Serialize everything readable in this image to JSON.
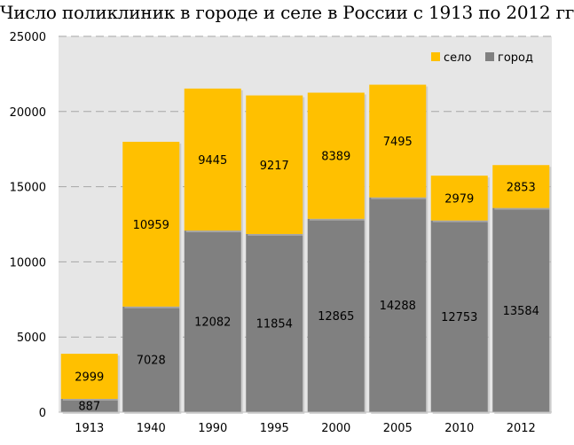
{
  "chart_data": {
    "type": "bar",
    "stacked": true,
    "title": "Число поликлиник в городе и селе в России с 1913 по 2012 гг",
    "xlabel": "",
    "ylabel": "",
    "categories": [
      "1913",
      "1940",
      "1990",
      "1995",
      "2000",
      "2005",
      "2010",
      "2012"
    ],
    "series": [
      {
        "name": "город",
        "color": "#808080",
        "values": [
          887,
          7028,
          12082,
          11854,
          12865,
          14288,
          12753,
          13584
        ]
      },
      {
        "name": "село",
        "color": "#FFC000",
        "values": [
          2999,
          10959,
          9445,
          9217,
          8389,
          7495,
          2979,
          2853
        ]
      }
    ],
    "ylim": [
      0,
      25000
    ],
    "yticks": [
      0,
      5000,
      10000,
      15000,
      20000,
      25000
    ],
    "grid": true,
    "legend": {
      "position": "top-right",
      "order": [
        "село",
        "город"
      ]
    },
    "colors": {
      "plot_bg": "#E6E6E6",
      "gridline": "#A6A6A6"
    }
  }
}
